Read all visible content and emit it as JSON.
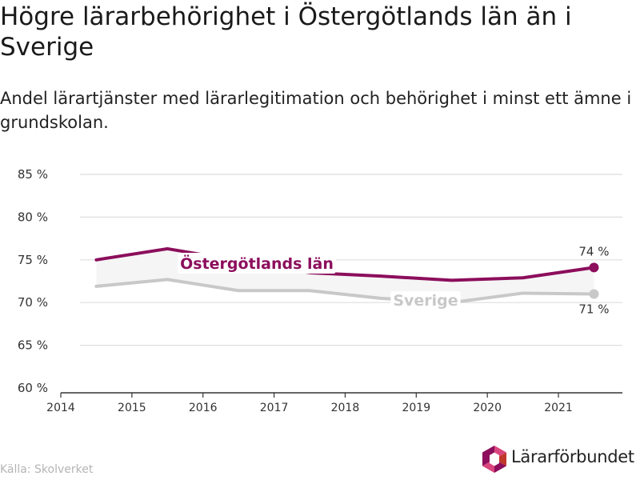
{
  "header": {
    "title": "Högre lärarbehörighet i Östergötlands län än i Sverige",
    "subtitle": "Andel lärartjänster med lärarlegitimation och behörighet i minst ett ämne i grundskolan."
  },
  "chart_data": {
    "type": "line",
    "x_ticks": [
      "2014",
      "2015",
      "2016",
      "2017",
      "2018",
      "2019",
      "2020",
      "2021"
    ],
    "y_ticks": [
      "60 %",
      "65 %",
      "70 %",
      "75 %",
      "80 %",
      "85 %"
    ],
    "xlim": [
      2014,
      2021.9
    ],
    "ylim": [
      60,
      85
    ],
    "grid": true,
    "x": [
      2014.5,
      2015.5,
      2016.5,
      2017.5,
      2018.5,
      2019.5,
      2020.5,
      2021.5
    ],
    "series": [
      {
        "name": "Östergötlands län",
        "values": [
          75.0,
          76.3,
          74.9,
          73.5,
          73.1,
          72.6,
          72.9,
          74.1
        ],
        "color": "#8c0e5c",
        "end_label": "74 %"
      },
      {
        "name": "Sverige",
        "values": [
          71.9,
          72.7,
          71.4,
          71.4,
          70.5,
          70.0,
          71.1,
          71.0
        ],
        "color": "#c8c8c8",
        "end_label": "71 %"
      }
    ],
    "band_color": "#f5f5f5"
  },
  "footer": {
    "source": "Källa: Skolverket",
    "logo_text": "Lärarförbundet",
    "logo_colors": [
      "#8c0e5c",
      "#d9457c",
      "#c0392b"
    ]
  }
}
